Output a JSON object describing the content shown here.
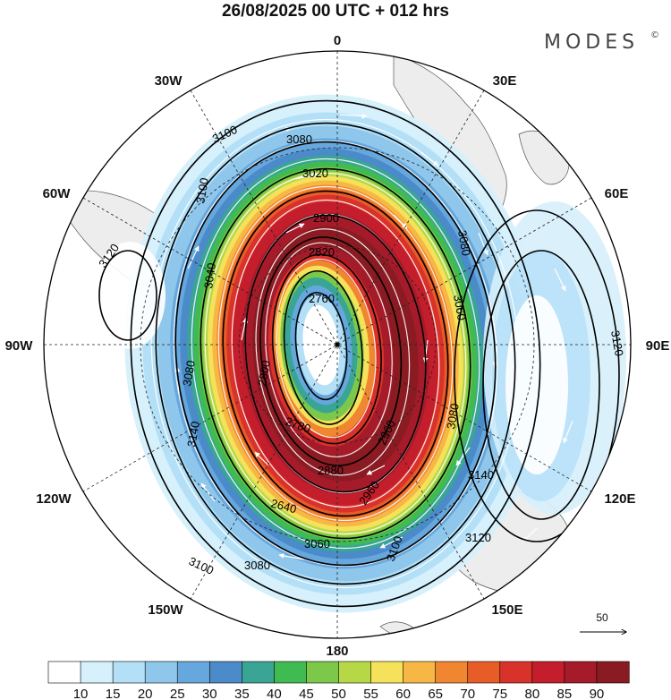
{
  "title": "26/08/2025  00 UTC  + 012 hrs",
  "brand": "MODES",
  "brand_mark": "©",
  "longitude_labels": {
    "lon_0": "0",
    "lon_30e": "30E",
    "lon_60e": "60E",
    "lon_90e": "90E",
    "lon_120e": "120E",
    "lon_150e": "150E",
    "lon_180": "180",
    "lon_150w": "150W",
    "lon_120w": "120W",
    "lon_90w": "90W",
    "lon_60w": "60W",
    "lon_30w": "30W"
  },
  "contour_labels": [
    "3100",
    "3080",
    "3020",
    "2900",
    "2820",
    "2760",
    "2780",
    "2800",
    "2880",
    "2960",
    "3060",
    "3100",
    "3080",
    "3080",
    "3100",
    "3120",
    "3140",
    "3120",
    "3120",
    "3100",
    "3080",
    "3060",
    "2640",
    "2960",
    "3140",
    "3040",
    "3080"
  ],
  "wind_scale": {
    "label": "50"
  },
  "colorbar": {
    "levels": [
      "10",
      "15",
      "20",
      "25",
      "30",
      "35",
      "40",
      "45",
      "50",
      "55",
      "60",
      "65",
      "70",
      "75",
      "80",
      "85",
      "90"
    ],
    "colors": [
      "#ffffff",
      "#d6f0fc",
      "#b4e0f7",
      "#8fc7ec",
      "#66a8dd",
      "#4b8bc9",
      "#3aa594",
      "#3fbb52",
      "#7cc84a",
      "#b7d846",
      "#f5e25a",
      "#f7b744",
      "#f0862f",
      "#e85c28",
      "#d8322a",
      "#c41e2c",
      "#a51b2a",
      "#8a1b22"
    ]
  }
}
